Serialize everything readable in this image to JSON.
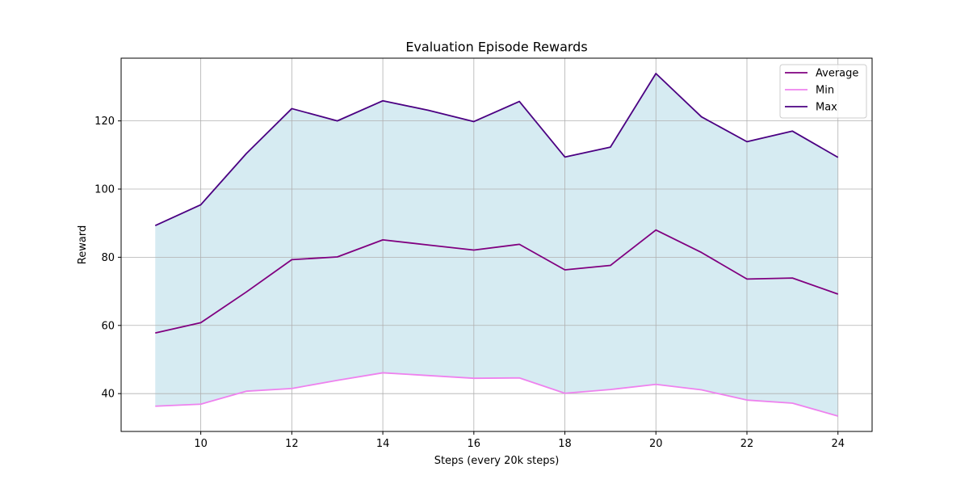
{
  "chart_data": {
    "type": "line",
    "title": "Evaluation Episode Rewards",
    "xlabel": "Steps (every 20k steps)",
    "ylabel": "Reward",
    "x": [
      9,
      10,
      11,
      12,
      13,
      14,
      15,
      16,
      17,
      18,
      19,
      20,
      21,
      22,
      23,
      24
    ],
    "series": [
      {
        "name": "Average",
        "color": "#800080",
        "values": [
          57.8,
          60.8,
          69.8,
          79.3,
          80.1,
          85.1,
          83.6,
          82.1,
          83.8,
          76.3,
          77.6,
          88.0,
          81.4,
          73.6,
          73.9,
          69.2
        ]
      },
      {
        "name": "Min",
        "color": "#EE82EE",
        "values": [
          36.3,
          36.9,
          40.7,
          41.5,
          43.9,
          46.1,
          45.3,
          44.5,
          44.6,
          40.1,
          41.2,
          42.7,
          41.1,
          38.1,
          37.2,
          33.4
        ]
      },
      {
        "name": "Max",
        "color": "#4B0082",
        "values": [
          89.3,
          95.4,
          110.4,
          123.6,
          120.0,
          125.9,
          123.1,
          119.8,
          125.7,
          109.4,
          112.3,
          133.9,
          121.2,
          113.9,
          117.0,
          109.3
        ]
      }
    ],
    "fill_between": {
      "lower": "Min",
      "upper": "Max",
      "color": "#add8e6",
      "alpha": 0.5
    },
    "xticks": [
      10,
      12,
      14,
      16,
      18,
      20,
      22,
      24
    ],
    "yticks": [
      40,
      60,
      80,
      100,
      120
    ],
    "xlim": [
      8.25,
      24.75
    ],
    "ylim": [
      28.9,
      138.4
    ],
    "grid": true,
    "legend_position": "top-right"
  }
}
